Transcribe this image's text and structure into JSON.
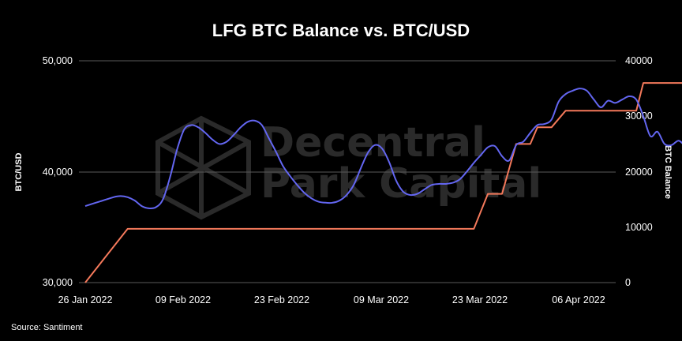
{
  "chart_data": {
    "type": "line",
    "title": "LFG BTC Balance vs. BTC/USD",
    "ylabel_left": "BTC/USD",
    "ylabel_right": "BTC Balance",
    "ylim_left": [
      30000,
      50000
    ],
    "ylim_right": [
      0,
      40000
    ],
    "yticks_left": [
      "30,000",
      "40,000",
      "50,000"
    ],
    "yticks_right": [
      "0",
      "10000",
      "20000",
      "30000",
      "40000"
    ],
    "xticks": [
      "26 Jan 2022",
      "09 Feb 2022",
      "23 Feb 2022",
      "09 Mar 2022",
      "23 Mar 2022",
      "06 Apr 2022"
    ],
    "x_start": "2022-01-26",
    "x_end": "2022-04-13",
    "grid": true,
    "source": "Source: Santiment",
    "watermark": [
      "Decentral",
      "Park Capital"
    ],
    "colors": {
      "btc_usd": "#6366f1",
      "btc_balance": "#f4795b",
      "background": "#000000",
      "grid": "#5a5a5a"
    },
    "series": [
      {
        "name": "BTC/USD",
        "axis": "left",
        "color": "#6366f1",
        "points": [
          [
            "2022-01-26",
            36900
          ],
          [
            "2022-01-28",
            37300
          ],
          [
            "2022-01-30",
            37700
          ],
          [
            "2022-01-31",
            37800
          ],
          [
            "2022-02-01",
            37700
          ],
          [
            "2022-02-02",
            37400
          ],
          [
            "2022-02-03",
            36900
          ],
          [
            "2022-02-04",
            36700
          ],
          [
            "2022-02-05",
            36800
          ],
          [
            "2022-02-06",
            37500
          ],
          [
            "2022-02-07",
            39500
          ],
          [
            "2022-02-08",
            42000
          ],
          [
            "2022-02-09",
            43800
          ],
          [
            "2022-02-10",
            44200
          ],
          [
            "2022-02-11",
            44000
          ],
          [
            "2022-02-12",
            43500
          ],
          [
            "2022-02-13",
            42900
          ],
          [
            "2022-02-14",
            42500
          ],
          [
            "2022-02-15",
            42700
          ],
          [
            "2022-02-16",
            43300
          ],
          [
            "2022-02-17",
            44000
          ],
          [
            "2022-02-18",
            44500
          ],
          [
            "2022-02-19",
            44600
          ],
          [
            "2022-02-20",
            44200
          ],
          [
            "2022-02-21",
            43000
          ],
          [
            "2022-02-22",
            41800
          ],
          [
            "2022-02-23",
            40500
          ],
          [
            "2022-02-24",
            39600
          ],
          [
            "2022-02-25",
            38800
          ],
          [
            "2022-02-26",
            38100
          ],
          [
            "2022-02-27",
            37600
          ],
          [
            "2022-02-28",
            37300
          ],
          [
            "2022-03-01",
            37200
          ],
          [
            "2022-03-02",
            37200
          ],
          [
            "2022-03-03",
            37400
          ],
          [
            "2022-03-04",
            37900
          ],
          [
            "2022-03-05",
            38800
          ],
          [
            "2022-03-06",
            40300
          ],
          [
            "2022-03-07",
            41700
          ],
          [
            "2022-03-08",
            42400
          ],
          [
            "2022-03-09",
            42100
          ],
          [
            "2022-03-10",
            40900
          ],
          [
            "2022-03-11",
            39200
          ],
          [
            "2022-03-12",
            38200
          ],
          [
            "2022-03-13",
            37900
          ],
          [
            "2022-03-14",
            38000
          ],
          [
            "2022-03-15",
            38400
          ],
          [
            "2022-03-16",
            38800
          ],
          [
            "2022-03-17",
            38900
          ],
          [
            "2022-03-18",
            38900
          ],
          [
            "2022-03-19",
            39000
          ],
          [
            "2022-03-20",
            39300
          ],
          [
            "2022-03-21",
            40000
          ],
          [
            "2022-03-22",
            40800
          ],
          [
            "2022-03-23",
            41500
          ],
          [
            "2022-03-24",
            42200
          ],
          [
            "2022-03-25",
            42300
          ],
          [
            "2022-03-26",
            41400
          ],
          [
            "2022-03-27",
            41000
          ],
          [
            "2022-03-28",
            42400
          ],
          [
            "2022-03-29",
            42700
          ],
          [
            "2022-03-30",
            43500
          ],
          [
            "2022-03-31",
            44200
          ],
          [
            "2022-04-01",
            44300
          ],
          [
            "2022-04-02",
            44700
          ],
          [
            "2022-04-03",
            46300
          ],
          [
            "2022-04-04",
            47000
          ],
          [
            "2022-04-05",
            47300
          ],
          [
            "2022-04-06",
            47500
          ],
          [
            "2022-04-07",
            47300
          ],
          [
            "2022-04-08",
            46500
          ],
          [
            "2022-04-09",
            45800
          ],
          [
            "2022-04-10",
            46400
          ],
          [
            "2022-04-11",
            46200
          ],
          [
            "2022-04-12",
            46500
          ],
          [
            "2022-04-13",
            46800
          ],
          [
            "2022-04-14",
            46500
          ],
          [
            "2022-04-15",
            45000
          ],
          [
            "2022-04-16",
            43200
          ],
          [
            "2022-04-17",
            43600
          ],
          [
            "2022-04-18",
            42500
          ],
          [
            "2022-04-19",
            42400
          ],
          [
            "2022-04-20",
            42800
          ],
          [
            "2022-04-21",
            42300
          ],
          [
            "2022-04-22",
            42300
          ]
        ]
      },
      {
        "name": "BTC Balance",
        "axis": "right",
        "color": "#f4795b",
        "points": [
          [
            "2022-01-26",
            0
          ],
          [
            "2022-02-01",
            9700
          ],
          [
            "2022-03-22",
            9700
          ],
          [
            "2022-03-24",
            16000
          ],
          [
            "2022-03-26",
            16000
          ],
          [
            "2022-03-28",
            25000
          ],
          [
            "2022-03-30",
            25000
          ],
          [
            "2022-03-31",
            28000
          ],
          [
            "2022-04-02",
            28000
          ],
          [
            "2022-04-04",
            31000
          ],
          [
            "2022-04-09",
            31000
          ],
          [
            "2022-04-10",
            31000
          ],
          [
            "2022-04-11",
            31000
          ],
          [
            "2022-04-12",
            31000
          ],
          [
            "2022-04-13",
            31000
          ],
          [
            "2022-04-14",
            31000
          ],
          [
            "2022-04-15",
            36000
          ],
          [
            "2022-04-21",
            36000
          ],
          [
            "2022-04-22",
            38000
          ],
          [
            "2022-04-23",
            38000
          ]
        ]
      }
    ]
  }
}
